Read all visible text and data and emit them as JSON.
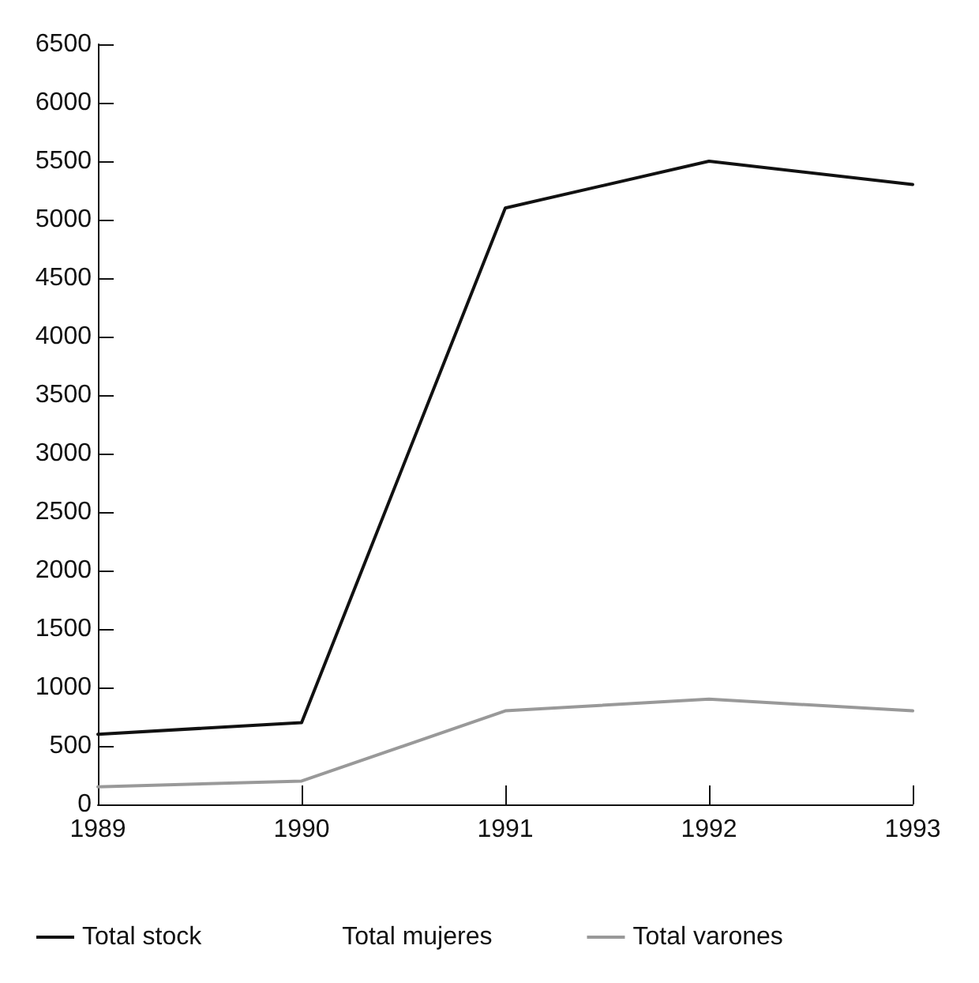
{
  "chart_data": {
    "type": "line",
    "categories": [
      "1989",
      "1990",
      "1991",
      "1992",
      "1993"
    ],
    "series": [
      {
        "name": "Total stock",
        "color": "#111111",
        "values": [
          600,
          700,
          5100,
          5500,
          5300
        ]
      },
      {
        "name": "Total mujeres",
        "values": [
          null,
          null,
          null,
          null,
          null
        ]
      },
      {
        "name": "Total varones",
        "color": "#999999",
        "values": [
          150,
          200,
          800,
          900,
          800
        ]
      }
    ],
    "ylim": [
      0,
      6500
    ],
    "yticks": [
      0,
      500,
      1000,
      1500,
      2000,
      2500,
      3000,
      3500,
      4000,
      4500,
      5000,
      5500,
      6000,
      6500
    ],
    "grid": false,
    "legend": "bottom",
    "marker": "none",
    "line_style": "solid"
  }
}
